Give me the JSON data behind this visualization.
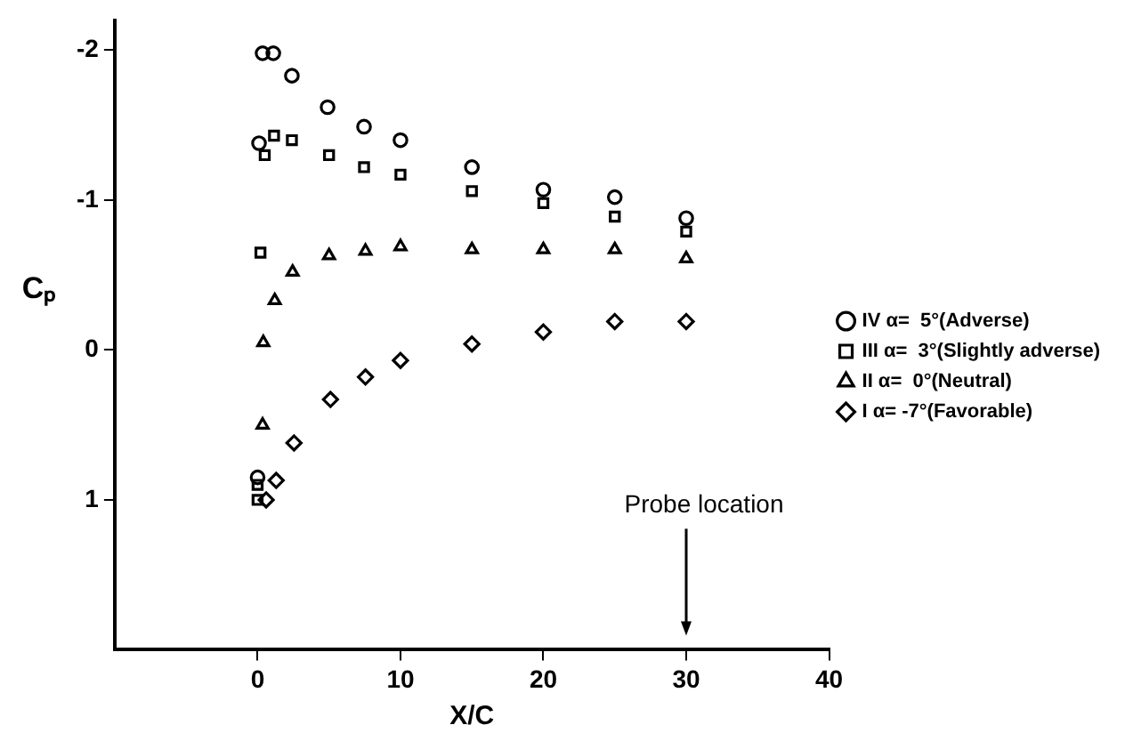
{
  "chart_data": {
    "type": "scatter",
    "xlabel": "X/C",
    "ylabel": "Cₚ",
    "xlim": [
      -10,
      40
    ],
    "xticks": [
      0,
      10,
      20,
      30,
      40
    ],
    "ylim": [
      2,
      -2.2
    ],
    "yticks": [
      -2,
      -1,
      0,
      1
    ],
    "grid": false,
    "legend": "right",
    "annotations": [
      "Probe location"
    ],
    "series": [
      {
        "name": "IV α=  5°(Adverse)",
        "color": "#000000",
        "marker": "circle",
        "x": [
          0.35,
          1.1,
          2.4,
          4.9,
          7.45,
          10,
          0.1,
          15,
          20,
          25,
          30,
          0
        ],
        "values": [
          -1.98,
          -1.98,
          -1.83,
          -1.62,
          -1.49,
          -1.4,
          -1.38,
          -1.22,
          -1.07,
          -1.02,
          -0.88,
          0.85
        ]
      },
      {
        "name": "III α=  3°(Slightly adverse)",
        "color": "#000000",
        "marker": "square",
        "x": [
          1.15,
          0.5,
          2.4,
          5,
          7.45,
          10,
          15,
          20,
          25,
          30,
          0.2,
          0,
          0
        ],
        "values": [
          -1.43,
          -1.3,
          -1.4,
          -1.3,
          -1.22,
          -1.17,
          -1.06,
          -0.98,
          -0.89,
          -0.79,
          -0.65,
          0.9,
          1.0
        ]
      },
      {
        "name": "II α=  0°(Neutral)",
        "color": "#000000",
        "marker": "triangle",
        "x": [
          1.2,
          0.4,
          0.35,
          2.45,
          5,
          7.55,
          10,
          15,
          20,
          25,
          30
        ],
        "values": [
          -0.33,
          -0.05,
          0.5,
          -0.52,
          -0.63,
          -0.66,
          -0.69,
          -0.67,
          -0.67,
          -0.67,
          -0.61
        ]
      },
      {
        "name": "I α= -7°(Favorable)",
        "color": "#000000",
        "marker": "diamond",
        "x": [
          1.3,
          0.6,
          2.55,
          5.1,
          7.55,
          10,
          15,
          20,
          25,
          30
        ],
        "values": [
          0.87,
          1.0,
          0.62,
          0.33,
          0.18,
          0.07,
          -0.04,
          -0.12,
          -0.19,
          -0.19
        ]
      }
    ]
  }
}
